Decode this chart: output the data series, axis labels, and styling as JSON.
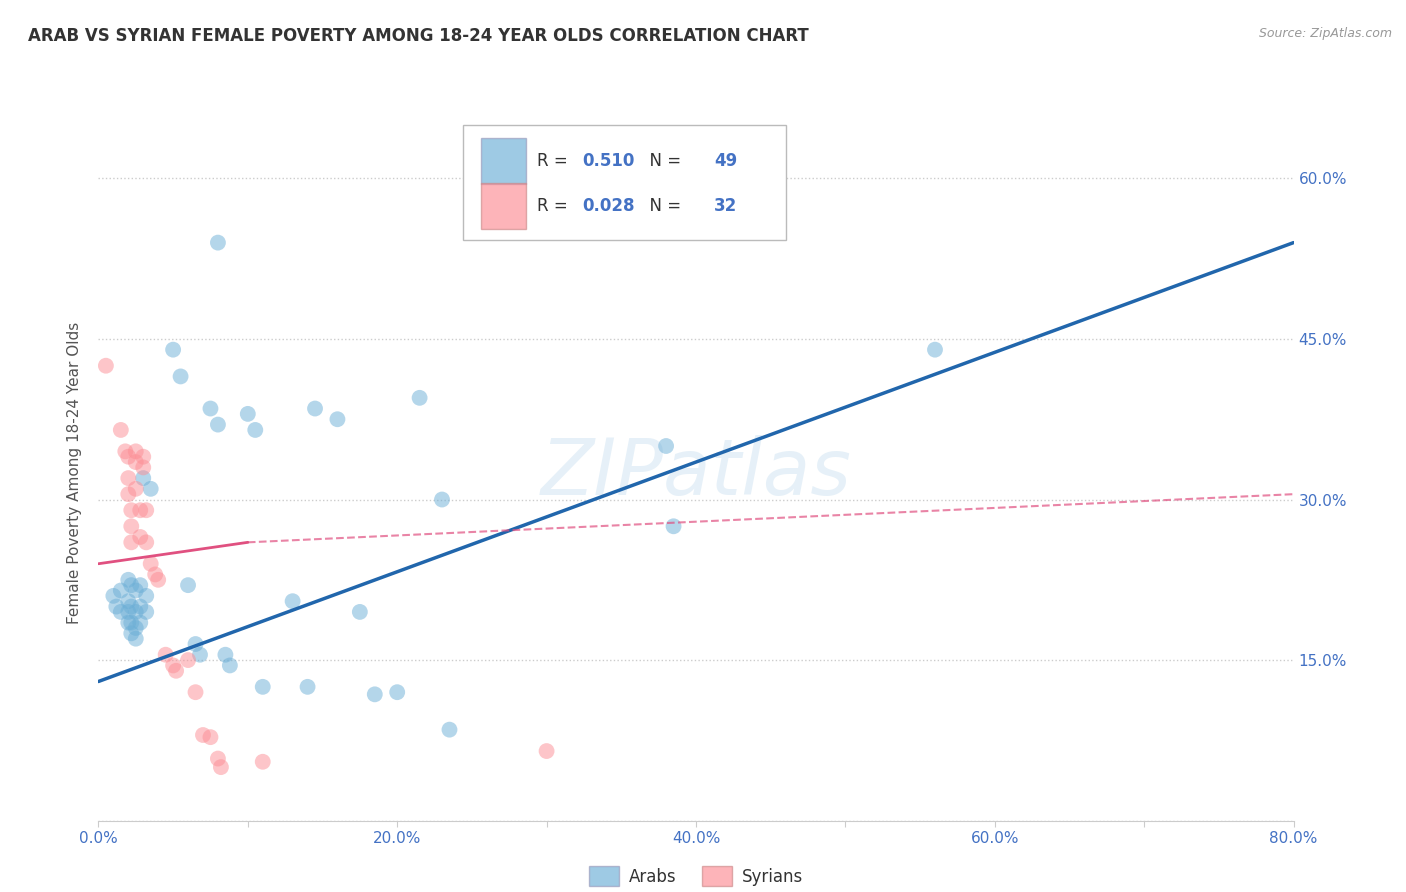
{
  "title": "ARAB VS SYRIAN FEMALE POVERTY AMONG 18-24 YEAR OLDS CORRELATION CHART",
  "source": "Source: ZipAtlas.com",
  "ylabel": "Female Poverty Among 18-24 Year Olds",
  "xlim": [
    0.0,
    0.8
  ],
  "ylim": [
    0.0,
    0.65
  ],
  "xticks": [
    0.0,
    0.1,
    0.2,
    0.3,
    0.4,
    0.5,
    0.6,
    0.7,
    0.8
  ],
  "xticklabels": [
    "0.0%",
    "",
    "20.0%",
    "",
    "40.0%",
    "",
    "60.0%",
    "",
    "80.0%"
  ],
  "yticks_left": [
    0.0,
    0.15,
    0.3,
    0.45,
    0.6
  ],
  "yticks_right": [
    0.15,
    0.3,
    0.45,
    0.6
  ],
  "yticklabels_left": [
    "",
    "",
    "",
    "",
    ""
  ],
  "yticklabels_right": [
    "15.0%",
    "30.0%",
    "45.0%",
    "60.0%"
  ],
  "arab_R": "0.510",
  "arab_N": "49",
  "syrian_R": "0.028",
  "syrian_N": "32",
  "arab_color": "#6baed6",
  "syrian_color": "#fc8d94",
  "arab_line_color": "#2166ac",
  "syrian_line_solid_color": "#e05080",
  "syrian_line_dash_color": "#e05080",
  "watermark": "ZIPatlas",
  "legend_entries": [
    "Arabs",
    "Syrians"
  ],
  "arab_scatter": [
    [
      0.01,
      0.21
    ],
    [
      0.012,
      0.2
    ],
    [
      0.015,
      0.215
    ],
    [
      0.015,
      0.195
    ],
    [
      0.02,
      0.225
    ],
    [
      0.02,
      0.205
    ],
    [
      0.02,
      0.195
    ],
    [
      0.02,
      0.185
    ],
    [
      0.022,
      0.22
    ],
    [
      0.022,
      0.2
    ],
    [
      0.022,
      0.185
    ],
    [
      0.022,
      0.175
    ],
    [
      0.025,
      0.215
    ],
    [
      0.025,
      0.195
    ],
    [
      0.025,
      0.18
    ],
    [
      0.025,
      0.17
    ],
    [
      0.028,
      0.22
    ],
    [
      0.028,
      0.2
    ],
    [
      0.028,
      0.185
    ],
    [
      0.03,
      0.32
    ],
    [
      0.032,
      0.21
    ],
    [
      0.032,
      0.195
    ],
    [
      0.035,
      0.31
    ],
    [
      0.05,
      0.44
    ],
    [
      0.055,
      0.415
    ],
    [
      0.06,
      0.22
    ],
    [
      0.065,
      0.165
    ],
    [
      0.068,
      0.155
    ],
    [
      0.075,
      0.385
    ],
    [
      0.08,
      0.37
    ],
    [
      0.085,
      0.155
    ],
    [
      0.088,
      0.145
    ],
    [
      0.1,
      0.38
    ],
    [
      0.105,
      0.365
    ],
    [
      0.11,
      0.125
    ],
    [
      0.13,
      0.205
    ],
    [
      0.14,
      0.125
    ],
    [
      0.145,
      0.385
    ],
    [
      0.16,
      0.375
    ],
    [
      0.175,
      0.195
    ],
    [
      0.185,
      0.118
    ],
    [
      0.2,
      0.12
    ],
    [
      0.215,
      0.395
    ],
    [
      0.23,
      0.3
    ],
    [
      0.235,
      0.085
    ],
    [
      0.38,
      0.35
    ],
    [
      0.385,
      0.275
    ],
    [
      0.56,
      0.44
    ],
    [
      0.08,
      0.54
    ]
  ],
  "syrian_scatter": [
    [
      0.005,
      0.425
    ],
    [
      0.015,
      0.365
    ],
    [
      0.018,
      0.345
    ],
    [
      0.02,
      0.34
    ],
    [
      0.02,
      0.32
    ],
    [
      0.02,
      0.305
    ],
    [
      0.022,
      0.29
    ],
    [
      0.022,
      0.275
    ],
    [
      0.022,
      0.26
    ],
    [
      0.025,
      0.345
    ],
    [
      0.025,
      0.335
    ],
    [
      0.025,
      0.31
    ],
    [
      0.028,
      0.29
    ],
    [
      0.028,
      0.265
    ],
    [
      0.03,
      0.34
    ],
    [
      0.03,
      0.33
    ],
    [
      0.032,
      0.29
    ],
    [
      0.032,
      0.26
    ],
    [
      0.035,
      0.24
    ],
    [
      0.038,
      0.23
    ],
    [
      0.04,
      0.225
    ],
    [
      0.045,
      0.155
    ],
    [
      0.05,
      0.145
    ],
    [
      0.052,
      0.14
    ],
    [
      0.06,
      0.15
    ],
    [
      0.065,
      0.12
    ],
    [
      0.07,
      0.08
    ],
    [
      0.075,
      0.078
    ],
    [
      0.08,
      0.058
    ],
    [
      0.082,
      0.05
    ],
    [
      0.11,
      0.055
    ],
    [
      0.3,
      0.065
    ]
  ],
  "arab_line": {
    "x0": 0.0,
    "y0": 0.13,
    "x1": 0.8,
    "y1": 0.54
  },
  "syrian_line_solid": {
    "x0": 0.0,
    "y0": 0.24,
    "x1": 0.1,
    "y1": 0.26
  },
  "syrian_line_full": {
    "x0": 0.0,
    "y0": 0.24,
    "x1": 0.8,
    "y1": 0.305
  }
}
